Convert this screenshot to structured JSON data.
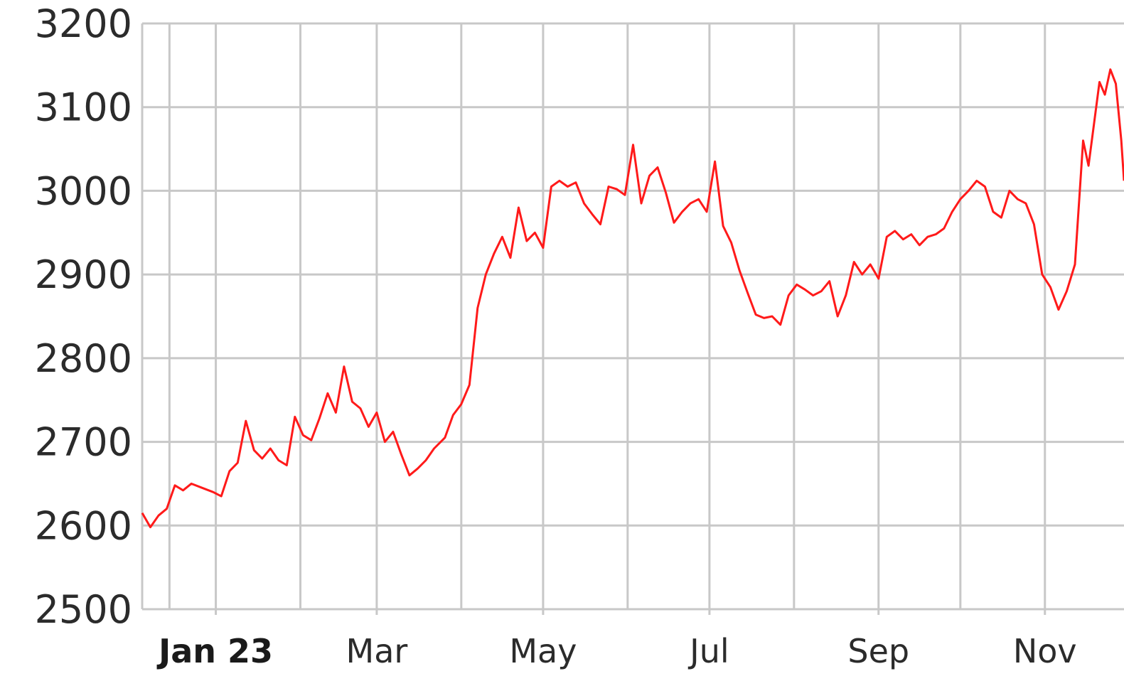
{
  "chart_data": {
    "type": "line",
    "title": "",
    "xlabel": "",
    "ylabel": "",
    "grid": true,
    "ylim": [
      2500,
      3200
    ],
    "yticks": [
      2500,
      2600,
      2700,
      2800,
      2900,
      3000,
      3100,
      3200
    ],
    "xlim": [
      "2022-12-05",
      "2023-11-30"
    ],
    "xticks": [
      {
        "date": "2023-01-01",
        "label": "Jan 23",
        "bold": true
      },
      {
        "date": "2023-03-01",
        "label": "Mar",
        "bold": false
      },
      {
        "date": "2023-05-01",
        "label": "May",
        "bold": false
      },
      {
        "date": "2023-07-01",
        "label": "Jul",
        "bold": false
      },
      {
        "date": "2023-09-01",
        "label": "Sep",
        "bold": false
      },
      {
        "date": "2023-11-01",
        "label": "Nov",
        "bold": false
      }
    ],
    "minor_gridlines": [
      "2022-12-15",
      "2023-02-01",
      "2023-04-01",
      "2023-06-01",
      "2023-08-01",
      "2023-10-01"
    ],
    "series": [
      {
        "color": "#ff1a1a",
        "points": [
          [
            "2022-12-05",
            2615
          ],
          [
            "2022-12-08",
            2598
          ],
          [
            "2022-12-11",
            2612
          ],
          [
            "2022-12-14",
            2620
          ],
          [
            "2022-12-17",
            2648
          ],
          [
            "2022-12-20",
            2642
          ],
          [
            "2022-12-23",
            2650
          ],
          [
            "2022-12-27",
            2645
          ],
          [
            "2022-12-31",
            2640
          ],
          [
            "2023-01-03",
            2635
          ],
          [
            "2023-01-06",
            2665
          ],
          [
            "2023-01-09",
            2675
          ],
          [
            "2023-01-12",
            2725
          ],
          [
            "2023-01-15",
            2690
          ],
          [
            "2023-01-18",
            2680
          ],
          [
            "2023-01-21",
            2692
          ],
          [
            "2023-01-24",
            2678
          ],
          [
            "2023-01-27",
            2672
          ],
          [
            "2023-01-30",
            2730
          ],
          [
            "2023-02-02",
            2708
          ],
          [
            "2023-02-05",
            2702
          ],
          [
            "2023-02-08",
            2728
          ],
          [
            "2023-02-11",
            2758
          ],
          [
            "2023-02-14",
            2735
          ],
          [
            "2023-02-17",
            2790
          ],
          [
            "2023-02-20",
            2748
          ],
          [
            "2023-02-23",
            2740
          ],
          [
            "2023-02-26",
            2718
          ],
          [
            "2023-03-01",
            2735
          ],
          [
            "2023-03-04",
            2700
          ],
          [
            "2023-03-07",
            2712
          ],
          [
            "2023-03-10",
            2685
          ],
          [
            "2023-03-13",
            2660
          ],
          [
            "2023-03-16",
            2668
          ],
          [
            "2023-03-19",
            2678
          ],
          [
            "2023-03-22",
            2692
          ],
          [
            "2023-03-26",
            2705
          ],
          [
            "2023-03-29",
            2732
          ],
          [
            "2023-04-01",
            2745
          ],
          [
            "2023-04-04",
            2768
          ],
          [
            "2023-04-07",
            2860
          ],
          [
            "2023-04-10",
            2900
          ],
          [
            "2023-04-13",
            2925
          ],
          [
            "2023-04-16",
            2945
          ],
          [
            "2023-04-19",
            2920
          ],
          [
            "2023-04-22",
            2980
          ],
          [
            "2023-04-25",
            2940
          ],
          [
            "2023-04-28",
            2950
          ],
          [
            "2023-05-01",
            2932
          ],
          [
            "2023-05-04",
            3005
          ],
          [
            "2023-05-07",
            3012
          ],
          [
            "2023-05-10",
            3005
          ],
          [
            "2023-05-13",
            3010
          ],
          [
            "2023-05-16",
            2985
          ],
          [
            "2023-05-19",
            2972
          ],
          [
            "2023-05-22",
            2960
          ],
          [
            "2023-05-25",
            3005
          ],
          [
            "2023-05-28",
            3002
          ],
          [
            "2023-05-31",
            2995
          ],
          [
            "2023-06-03",
            3055
          ],
          [
            "2023-06-06",
            2985
          ],
          [
            "2023-06-09",
            3018
          ],
          [
            "2023-06-12",
            3028
          ],
          [
            "2023-06-15",
            2998
          ],
          [
            "2023-06-18",
            2962
          ],
          [
            "2023-06-21",
            2975
          ],
          [
            "2023-06-24",
            2985
          ],
          [
            "2023-06-27",
            2990
          ],
          [
            "2023-06-30",
            2975
          ],
          [
            "2023-07-03",
            3035
          ],
          [
            "2023-07-06",
            2958
          ],
          [
            "2023-07-09",
            2938
          ],
          [
            "2023-07-12",
            2905
          ],
          [
            "2023-07-15",
            2878
          ],
          [
            "2023-07-18",
            2852
          ],
          [
            "2023-07-21",
            2848
          ],
          [
            "2023-07-24",
            2850
          ],
          [
            "2023-07-27",
            2840
          ],
          [
            "2023-07-30",
            2875
          ],
          [
            "2023-08-02",
            2888
          ],
          [
            "2023-08-05",
            2882
          ],
          [
            "2023-08-08",
            2875
          ],
          [
            "2023-08-11",
            2880
          ],
          [
            "2023-08-14",
            2892
          ],
          [
            "2023-08-17",
            2850
          ],
          [
            "2023-08-20",
            2875
          ],
          [
            "2023-08-23",
            2915
          ],
          [
            "2023-08-26",
            2900
          ],
          [
            "2023-08-29",
            2912
          ],
          [
            "2023-09-01",
            2895
          ],
          [
            "2023-09-04",
            2945
          ],
          [
            "2023-09-07",
            2952
          ],
          [
            "2023-09-10",
            2942
          ],
          [
            "2023-09-13",
            2948
          ],
          [
            "2023-09-16",
            2935
          ],
          [
            "2023-09-19",
            2945
          ],
          [
            "2023-09-22",
            2948
          ],
          [
            "2023-09-25",
            2955
          ],
          [
            "2023-09-28",
            2975
          ],
          [
            "2023-10-01",
            2990
          ],
          [
            "2023-10-04",
            3000
          ],
          [
            "2023-10-07",
            3012
          ],
          [
            "2023-10-10",
            3005
          ],
          [
            "2023-10-13",
            2975
          ],
          [
            "2023-10-16",
            2968
          ],
          [
            "2023-10-19",
            3000
          ],
          [
            "2023-10-22",
            2990
          ],
          [
            "2023-10-25",
            2985
          ],
          [
            "2023-10-28",
            2960
          ],
          [
            "2023-10-31",
            2900
          ],
          [
            "2023-11-03",
            2885
          ],
          [
            "2023-11-06",
            2858
          ],
          [
            "2023-11-09",
            2880
          ],
          [
            "2023-11-12",
            2912
          ],
          [
            "2023-11-15",
            3060
          ],
          [
            "2023-11-17",
            3030
          ],
          [
            "2023-11-19",
            3080
          ],
          [
            "2023-11-21",
            3130
          ],
          [
            "2023-11-23",
            3115
          ],
          [
            "2023-11-25",
            3145
          ],
          [
            "2023-11-27",
            3128
          ],
          [
            "2023-11-29",
            3060
          ],
          [
            "2023-11-30",
            3012
          ]
        ]
      }
    ]
  }
}
